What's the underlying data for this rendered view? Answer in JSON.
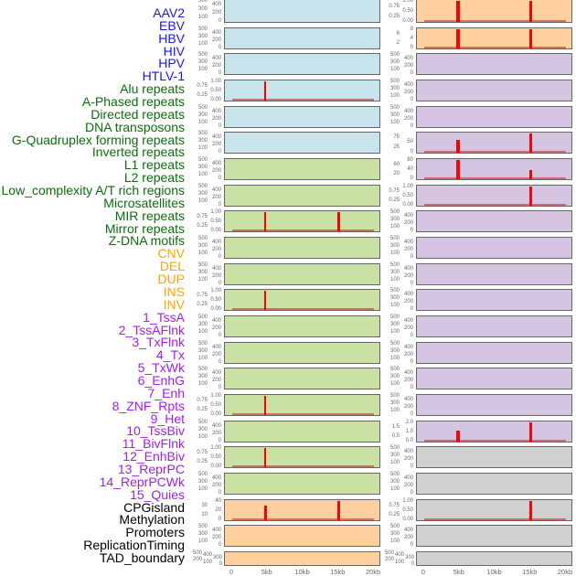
{
  "chart_data": {
    "type": "bar",
    "xlabel": "",
    "xlim": [
      0,
      20
    ],
    "xticks": [
      "0",
      "5kb",
      "10kb",
      "15kb",
      "20kb"
    ],
    "category_colors": {
      "virus": "#1515f5",
      "repeat": "#0b6e0b",
      "sv": "#ffa500",
      "chromatin": "#a020f0",
      "other": "#000000"
    },
    "panel_colors": {
      "virus": "#c7e3eb",
      "repeat": "#c9e1a3",
      "sv": "#fed09e",
      "chromatin": "#d5c5e2",
      "other": "#d0d0d0"
    },
    "columns": [
      [
        {
          "label": "AAV2",
          "group": "virus",
          "ylim": [
            0,
            500
          ],
          "yticks": [
            "0",
            "100",
            "200",
            "300",
            "400",
            "500"
          ],
          "spikes": []
        },
        {
          "label": "EBV",
          "group": "virus",
          "ylim": [
            0,
            500
          ],
          "yticks": [
            "0",
            "100",
            "200",
            "300",
            "400",
            "500"
          ],
          "spikes": []
        },
        {
          "label": "HBV",
          "group": "virus",
          "ylim": [
            0,
            500
          ],
          "yticks": [
            "0",
            "100",
            "200",
            "300",
            "400",
            "500"
          ],
          "spikes": []
        },
        {
          "label": "HIV",
          "group": "virus",
          "ylim": [
            0,
            1
          ],
          "yticks": [
            "0.00",
            "0.25",
            "0.50",
            "0.75",
            "1.00"
          ],
          "spikes": [
            [
              4.7,
              1
            ]
          ]
        },
        {
          "label": "HPV",
          "group": "virus",
          "ylim": [
            0,
            500
          ],
          "yticks": [
            "0",
            "100",
            "200",
            "300",
            "400",
            "500"
          ],
          "spikes": []
        },
        {
          "label": "HTLV-1",
          "group": "virus",
          "ylim": [
            0,
            500
          ],
          "yticks": [
            "0",
            "100",
            "200",
            "300",
            "400",
            "500"
          ],
          "spikes": []
        },
        {
          "label": "Alu repeats",
          "group": "repeat",
          "ylim": [
            0,
            500
          ],
          "yticks": [
            "0",
            "100",
            "200",
            "300",
            "400",
            "500"
          ],
          "spikes": []
        },
        {
          "label": "A-Phased repeats",
          "group": "repeat",
          "ylim": [
            0,
            500
          ],
          "yticks": [
            "0",
            "100",
            "200",
            "300",
            "400",
            "500"
          ],
          "spikes": []
        },
        {
          "label": "Directed repeats",
          "group": "repeat",
          "ylim": [
            0,
            1
          ],
          "yticks": [
            "0.00",
            "0.25",
            "0.50",
            "0.75",
            "1.00"
          ],
          "spikes": [
            [
              4.7,
              1
            ],
            [
              15,
              1
            ]
          ]
        },
        {
          "label": "DNA transposons",
          "group": "repeat",
          "ylim": [
            0,
            500
          ],
          "yticks": [
            "0",
            "100",
            "200",
            "300",
            "400",
            "500"
          ],
          "spikes": []
        },
        {
          "label": "G-Quadruplex forming repeats",
          "group": "repeat",
          "ylim": [
            0,
            500
          ],
          "yticks": [
            "0",
            "100",
            "200",
            "300",
            "400",
            "500"
          ],
          "spikes": []
        },
        {
          "label": "Inverted repeats",
          "group": "repeat",
          "ylim": [
            0,
            1
          ],
          "yticks": [
            "0.00",
            "0.25",
            "0.50",
            "0.75",
            "1.00"
          ],
          "spikes": [
            [
              4.7,
              1
            ]
          ]
        },
        {
          "label": "L1 repeats",
          "group": "repeat",
          "ylim": [
            0,
            500
          ],
          "yticks": [
            "0",
            "100",
            "200",
            "300",
            "400",
            "500"
          ],
          "spikes": []
        },
        {
          "label": "L2 repeats",
          "group": "repeat",
          "ylim": [
            0,
            500
          ],
          "yticks": [
            "0",
            "100",
            "200",
            "300",
            "400",
            "500"
          ],
          "spikes": []
        },
        {
          "label": "Low_complexity A/T rich regions",
          "group": "repeat",
          "ylim": [
            0,
            500
          ],
          "yticks": [
            "0",
            "100",
            "200",
            "300",
            "400",
            "500"
          ],
          "spikes": []
        },
        {
          "label": "Microsatellites",
          "group": "repeat",
          "ylim": [
            0,
            1
          ],
          "yticks": [
            "0.00",
            "0.25",
            "0.50",
            "0.75",
            "1.00"
          ],
          "spikes": [
            [
              4.7,
              1
            ]
          ]
        },
        {
          "label": "MIR repeats",
          "group": "repeat",
          "ylim": [
            0,
            500
          ],
          "yticks": [
            "0",
            "100",
            "200",
            "300",
            "400",
            "500"
          ],
          "spikes": []
        },
        {
          "label": "Mirror repeats",
          "group": "repeat",
          "ylim": [
            0,
            1
          ],
          "yticks": [
            "0.00",
            "0.25",
            "0.50",
            "0.75",
            "1.00"
          ],
          "spikes": [
            [
              4.7,
              1
            ]
          ]
        },
        {
          "label": "Z-DNA motifs",
          "group": "repeat",
          "ylim": [
            0,
            500
          ],
          "yticks": [
            "0",
            "100",
            "200",
            "300",
            "400",
            "500"
          ],
          "spikes": []
        },
        {
          "label": "CNV",
          "group": "sv",
          "ylim": [
            0,
            40
          ],
          "yticks": [
            "0",
            "10",
            "20",
            "30",
            "40"
          ],
          "spikes": [
            [
              4.7,
              30
            ],
            [
              15,
              40
            ]
          ]
        },
        {
          "label": "DEL",
          "group": "sv",
          "ylim": [
            0,
            500
          ],
          "yticks": [
            "0",
            "100",
            "200",
            "300",
            "400",
            "500"
          ],
          "spikes": []
        },
        {
          "label": "DUP",
          "group": "sv",
          "ylim": [
            0,
            500
          ],
          "yticks": [
            "0",
            "100",
            "200",
            "300",
            "400",
            "500"
          ],
          "spikes": []
        }
      ],
      [
        {
          "label": "INS",
          "group": "sv",
          "ylim": [
            0,
            1
          ],
          "yticks": [
            "0.00",
            "0.25",
            "0.50",
            "0.75",
            "1.00"
          ],
          "spikes": [
            [
              4.8,
              1
            ],
            [
              15,
              1
            ]
          ]
        },
        {
          "label": "INV",
          "group": "sv",
          "ylim": [
            0,
            8
          ],
          "yticks": [
            "0",
            "2",
            "4",
            "6",
            "8"
          ],
          "spikes": [
            [
              4.8,
              8
            ],
            [
              15,
              8
            ]
          ]
        },
        {
          "label": "1_TssA",
          "group": "chromatin",
          "ylim": [
            0,
            500
          ],
          "yticks": [
            "0",
            "100",
            "200",
            "300",
            "400",
            "500"
          ],
          "spikes": []
        },
        {
          "label": "2_TssAFlnk",
          "group": "chromatin",
          "ylim": [
            0,
            500
          ],
          "yticks": [
            "0",
            "100",
            "200",
            "300",
            "400",
            "500"
          ],
          "spikes": []
        },
        {
          "label": "3_TxFlnk",
          "group": "chromatin",
          "ylim": [
            0,
            500
          ],
          "yticks": [
            "0",
            "100",
            "200",
            "300",
            "400",
            "500"
          ],
          "spikes": []
        },
        {
          "label": "4_Tx",
          "group": "chromatin",
          "ylim": [
            0,
            90
          ],
          "yticks": [
            "0",
            "25",
            "50",
            "75"
          ],
          "spikes": [
            [
              4.8,
              60
            ],
            [
              15,
              90
            ]
          ]
        },
        {
          "label": "5_TxWk",
          "group": "chromatin",
          "ylim": [
            0,
            80
          ],
          "yticks": [
            "0",
            "20",
            "40",
            "60",
            "80"
          ],
          "spikes": [
            [
              4.8,
              80
            ],
            [
              15,
              37
            ]
          ]
        },
        {
          "label": "6_EnhG",
          "group": "chromatin",
          "ylim": [
            0,
            1
          ],
          "yticks": [
            "0.00",
            "0.25",
            "0.50",
            "0.75",
            "1.00"
          ],
          "spikes": [
            [
              15,
              1
            ]
          ]
        },
        {
          "label": "7_Enh",
          "group": "chromatin",
          "ylim": [
            0,
            500
          ],
          "yticks": [
            "0",
            "100",
            "200",
            "300",
            "400",
            "500"
          ],
          "spikes": []
        },
        {
          "label": "8_ZNF_Rpts",
          "group": "chromatin",
          "ylim": [
            0,
            500
          ],
          "yticks": [
            "0",
            "100",
            "200",
            "300",
            "400",
            "500"
          ],
          "spikes": []
        },
        {
          "label": "9_Het",
          "group": "chromatin",
          "ylim": [
            0,
            500
          ],
          "yticks": [
            "0",
            "100",
            "200",
            "300",
            "400",
            "500"
          ],
          "spikes": []
        },
        {
          "label": "10_TssBiv",
          "group": "chromatin",
          "ylim": [
            0,
            500
          ],
          "yticks": [
            "0",
            "100",
            "200",
            "300",
            "400",
            "500"
          ],
          "spikes": []
        },
        {
          "label": "11_BivFlnk",
          "group": "chromatin",
          "ylim": [
            0,
            500
          ],
          "yticks": [
            "0",
            "100",
            "200",
            "300",
            "400",
            "500"
          ],
          "spikes": []
        },
        {
          "label": "12_EnhBiv",
          "group": "chromatin",
          "ylim": [
            0,
            500
          ],
          "yticks": [
            "0",
            "100",
            "200",
            "300",
            "400",
            "500"
          ],
          "spikes": []
        },
        {
          "label": "13_ReprPC",
          "group": "chromatin",
          "ylim": [
            0,
            500
          ],
          "yticks": [
            "0",
            "100",
            "200",
            "300",
            "400",
            "500"
          ],
          "spikes": []
        },
        {
          "label": "14_ReprPCWk",
          "group": "chromatin",
          "ylim": [
            0,
            500
          ],
          "yticks": [
            "0",
            "100",
            "200",
            "300",
            "400",
            "500"
          ],
          "spikes": []
        },
        {
          "label": "15_Quies",
          "group": "chromatin",
          "ylim": [
            0,
            2
          ],
          "yticks": [
            "0.0",
            "0.5",
            "1.0",
            "1.5",
            "2.0"
          ],
          "spikes": [
            [
              4.8,
              1.1
            ],
            [
              15,
              2
            ]
          ]
        },
        {
          "label": "CPGisland",
          "group": "other",
          "ylim": [
            0,
            500
          ],
          "yticks": [
            "0",
            "100",
            "200",
            "300",
            "400",
            "500"
          ],
          "spikes": []
        },
        {
          "label": "Methylation",
          "group": "other",
          "ylim": [
            0,
            500
          ],
          "yticks": [
            "0",
            "100",
            "200",
            "300",
            "400",
            "500"
          ],
          "spikes": []
        },
        {
          "label": "Promoters",
          "group": "other",
          "ylim": [
            0,
            1
          ],
          "yticks": [
            "0.00",
            "0.25",
            "0.50",
            "0.75",
            "1.00"
          ],
          "spikes": [
            [
              15,
              1
            ]
          ]
        },
        {
          "label": "ReplicationTiming",
          "group": "other",
          "ylim": [
            0,
            500
          ],
          "yticks": [
            "0",
            "100",
            "200",
            "300",
            "400",
            "500"
          ],
          "spikes": []
        },
        {
          "label": "TAD_boundary",
          "group": "other",
          "ylim": [
            0,
            500
          ],
          "yticks": [
            "0",
            "100",
            "200",
            "300",
            "400",
            "500"
          ],
          "spikes": []
        }
      ]
    ]
  }
}
